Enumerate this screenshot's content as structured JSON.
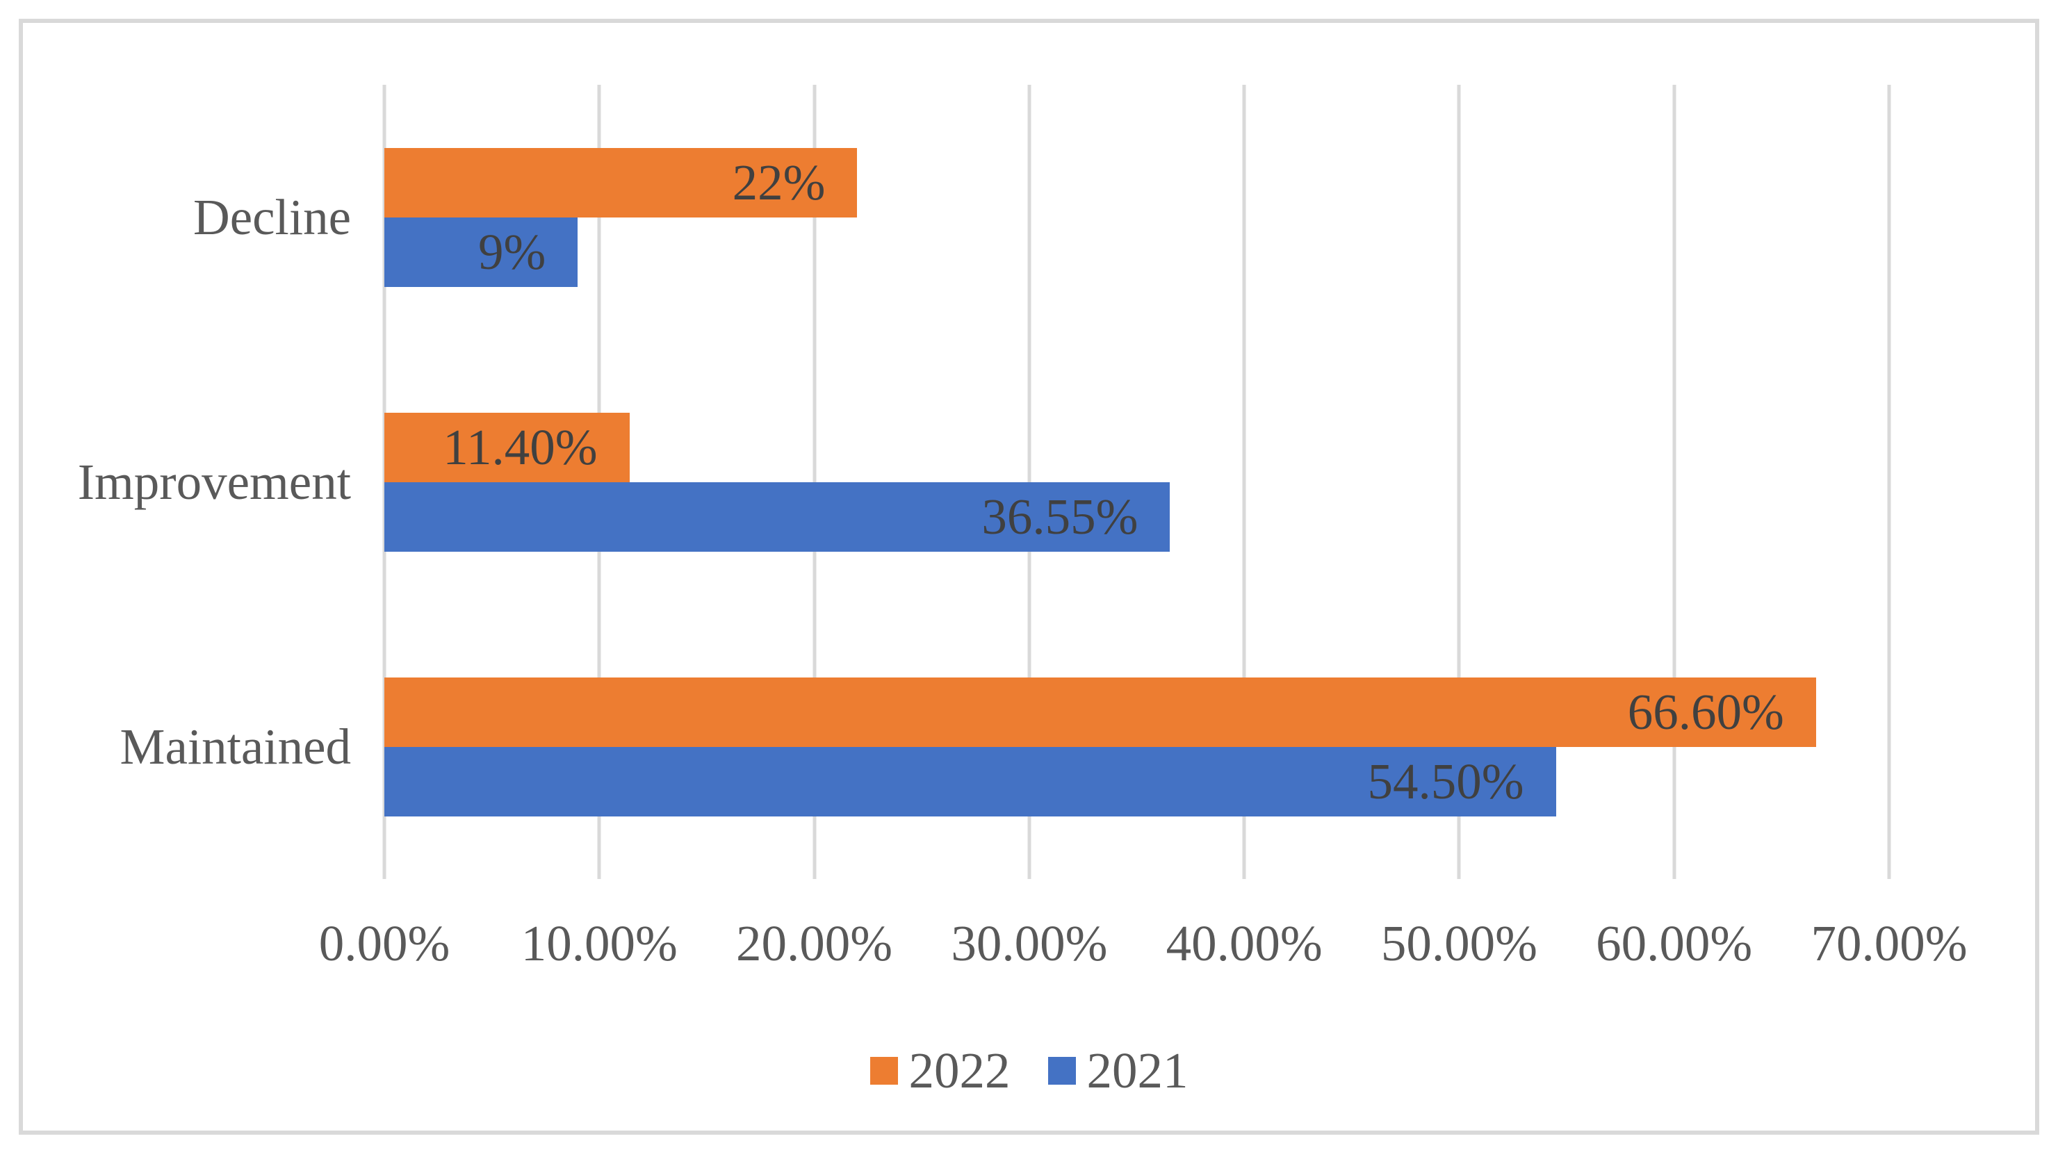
{
  "chart_data": {
    "type": "bar",
    "orientation": "horizontal",
    "title": "",
    "xlabel": "",
    "ylabel": "",
    "categories_top_to_bottom": [
      "Decline",
      "Improvement",
      "Maintained"
    ],
    "series": [
      {
        "name": "2022",
        "color": "#ED7D31",
        "values": [
          22,
          11.4,
          66.6
        ],
        "value_labels": [
          "22%",
          "11.40%",
          "66.60%"
        ]
      },
      {
        "name": "2021",
        "color": "#4472C4",
        "values": [
          9,
          36.55,
          54.5
        ],
        "value_labels": [
          "9%",
          "36.55%",
          "54.50%"
        ]
      }
    ],
    "x_ticks": [
      "0.00%",
      "10.00%",
      "20.00%",
      "30.00%",
      "40.00%",
      "50.00%",
      "60.00%",
      "70.00%"
    ],
    "xlim": [
      0,
      70
    ],
    "grid": true,
    "legend_position": "bottom",
    "value_label_position": "inside-end"
  },
  "colors": {
    "background": "#FFFFFF",
    "frame_border": "#D9D9D9",
    "gridline": "#D9D9D9",
    "data_label_text": "#404040",
    "axis_text": "#595959",
    "series_2022": "#ED7D31",
    "series_2021": "#4472C4"
  }
}
